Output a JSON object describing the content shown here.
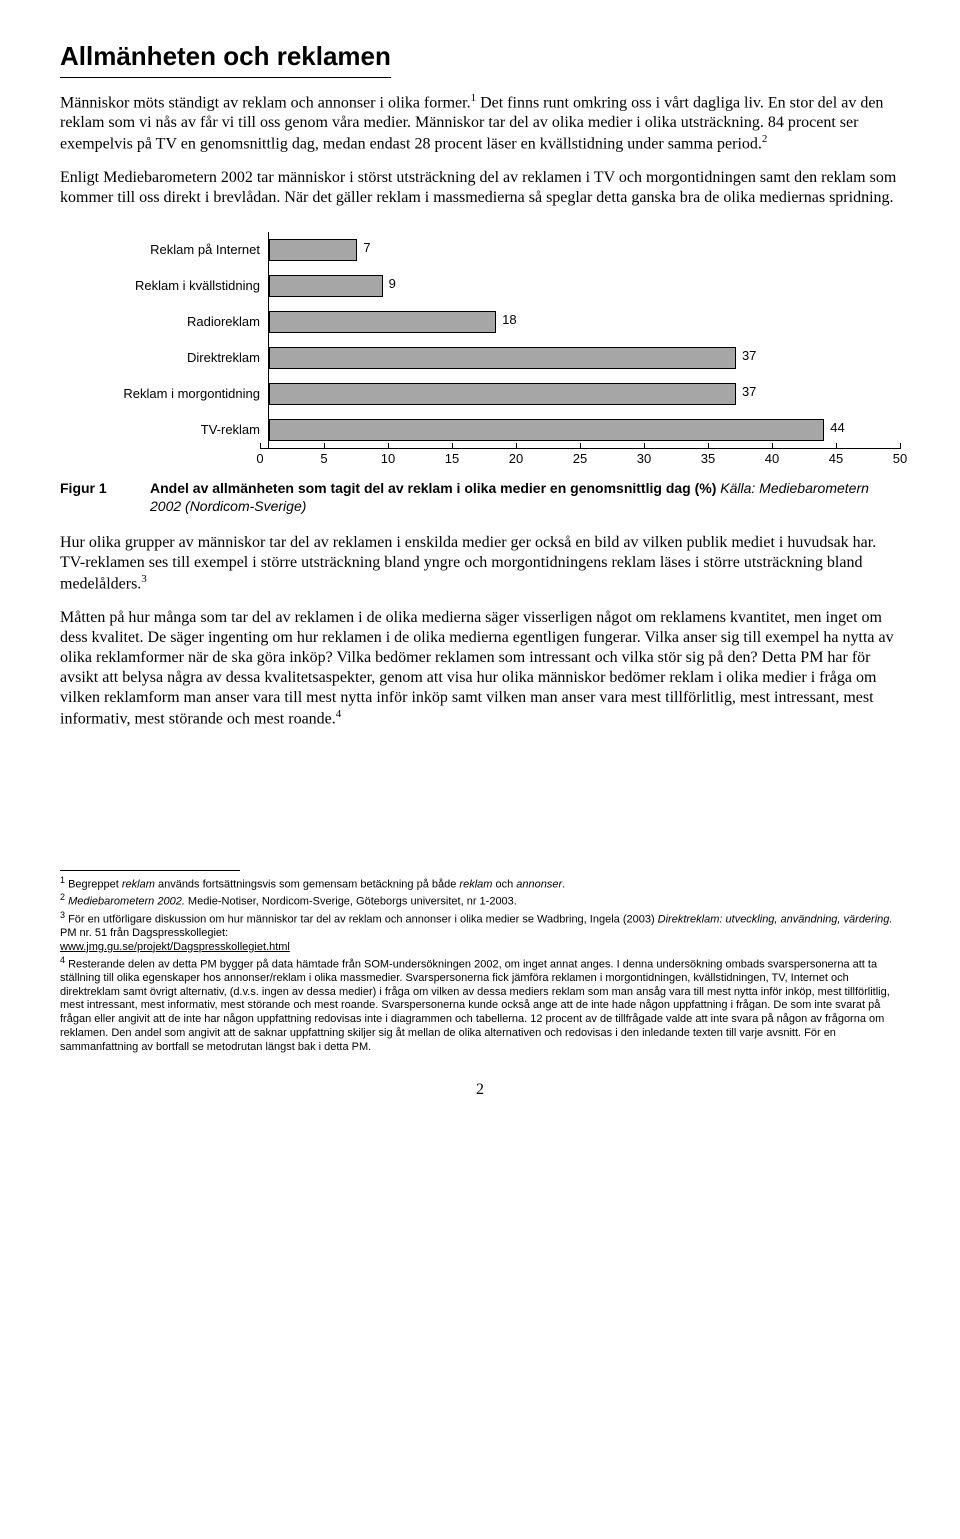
{
  "title": "Allmänheten och reklamen",
  "para1_a": "Människor möts ständigt av reklam och annonser i olika former.",
  "para1_sup1": "1",
  "para1_b": " Det finns runt omkring oss i vårt dagliga liv. En stor del av den reklam som vi nås av får vi till oss genom våra medier. Människor tar del av olika medier i olika utsträckning. 84 procent ser exempelvis på TV en genomsnittlig dag, medan endast 28 procent läser en kvällstidning under samma period.",
  "para1_sup2": "2",
  "para2": "Enligt Mediebarometern 2002 tar människor i störst utsträckning del av reklamen i TV och morgontidningen samt den reklam som kommer till oss direkt i brevlådan. När det gäller reklam i massmedierna så speglar detta ganska bra de olika mediernas spridning.",
  "chart": {
    "type": "bar",
    "categories": [
      "Reklam på Internet",
      "Reklam i kvällstidning",
      "Radioreklam",
      "Direktreklam",
      "Reklam i morgontidning",
      "TV-reklam"
    ],
    "values": [
      7,
      9,
      18,
      37,
      37,
      44
    ],
    "bar_color": "#a6a6a6",
    "bar_border": "#000000",
    "xlim": [
      0,
      50
    ],
    "xtick_step": 5,
    "xtick_labels": [
      "0",
      "5",
      "10",
      "15",
      "20",
      "25",
      "30",
      "35",
      "40",
      "45",
      "50"
    ],
    "label_fontsize": 13,
    "value_fontsize": 13,
    "background_color": "#ffffff"
  },
  "figure_label": "Figur 1",
  "figure_caption_bold": "Andel av allmänheten som tagit del av reklam i olika medier en genomsnittlig dag (%) ",
  "figure_caption_ital": "Källa: Mediebarometern 2002 (Nordicom-Sverige)",
  "para3_a": "Hur olika grupper av människor tar del av reklamen i enskilda medier ger också en bild av vilken publik mediet i huvudsak har. TV-reklamen ses till exempel i större utsträckning bland yngre och morgontidningens reklam läses i större utsträckning bland medelålders.",
  "para3_sup": "3",
  "para4_a": "Måtten på hur många som tar del av reklamen i de olika medierna säger visserligen något om reklamens kvantitet, men inget om dess kvalitet. De säger ingenting om hur reklamen i de olika medierna egentligen fungerar. Vilka anser sig till exempel ha nytta av olika reklamformer när de ska göra inköp? Vilka bedömer reklamen som intressant och vilka stör sig på den? Detta PM har för avsikt att belysa några av dessa kvalitetsaspekter, genom att visa hur olika människor bedömer reklam i olika medier i fråga om vilken reklamform man anser vara till mest nytta inför inköp samt vilken man anser vara mest tillförlitlig, mest intressant, mest informativ, mest störande och mest roande.",
  "para4_sup": "4",
  "footnotes": {
    "f1_sup": "1",
    "f1_a": " Begreppet ",
    "f1_ital": "reklam",
    "f1_b": " används fortsättningsvis som gemensam betäckning på både ",
    "f1_ital2": "reklam",
    "f1_c": " och ",
    "f1_ital3": "annonser",
    "f1_d": ".",
    "f2_sup": "2",
    "f2_a": " ",
    "f2_ital": "Mediebarometern 2002.",
    "f2_b": " Medie-Notiser, Nordicom-Sverige, Göteborgs universitet, nr 1-2003.",
    "f3_sup": "3",
    "f3_a": " För en utförligare diskussion om hur människor tar del av reklam och annonser i olika medier se Wadbring, Ingela (2003) ",
    "f3_ital": "Direktreklam: utveckling, användning, värdering.",
    "f3_b": " PM nr. 51 från Dagspresskollegiet: ",
    "f3_link": "www.jmg.gu.se/projekt/Dagspresskollegiet.html",
    "f4_sup": "4",
    "f4": " Resterande delen av detta PM bygger på data hämtade från SOM-undersökningen 2002, om inget annat anges. I denna undersökning ombads svarspersonerna att ta ställning till olika egenskaper hos annonser/reklam i olika massmedier. Svarspersonerna fick jämföra reklamen i morgontidningen, kvällstidningen, TV, Internet och direktreklam samt övrigt alternativ, (d.v.s. ingen av dessa medier) i fråga om vilken av dessa mediers reklam som man ansåg vara till mest nytta inför inköp, mest tillförlitlig, mest intressant, mest informativ, mest störande och mest roande. Svarspersonerna kunde också ange att de inte hade någon uppfattning i frågan. De som inte svarat på frågan eller angivit att de inte har någon uppfattning redovisas inte i diagrammen och tabellerna. 12 procent av de tillfrågade valde att inte svara på någon av frågorna om reklamen. Den andel som angivit att de saknar uppfattning skiljer sig åt mellan de olika alternativen och redovisas i den inledande texten till varje avsnitt. För en sammanfattning av bortfall se metodrutan längst bak i detta PM."
  },
  "page_number": "2"
}
